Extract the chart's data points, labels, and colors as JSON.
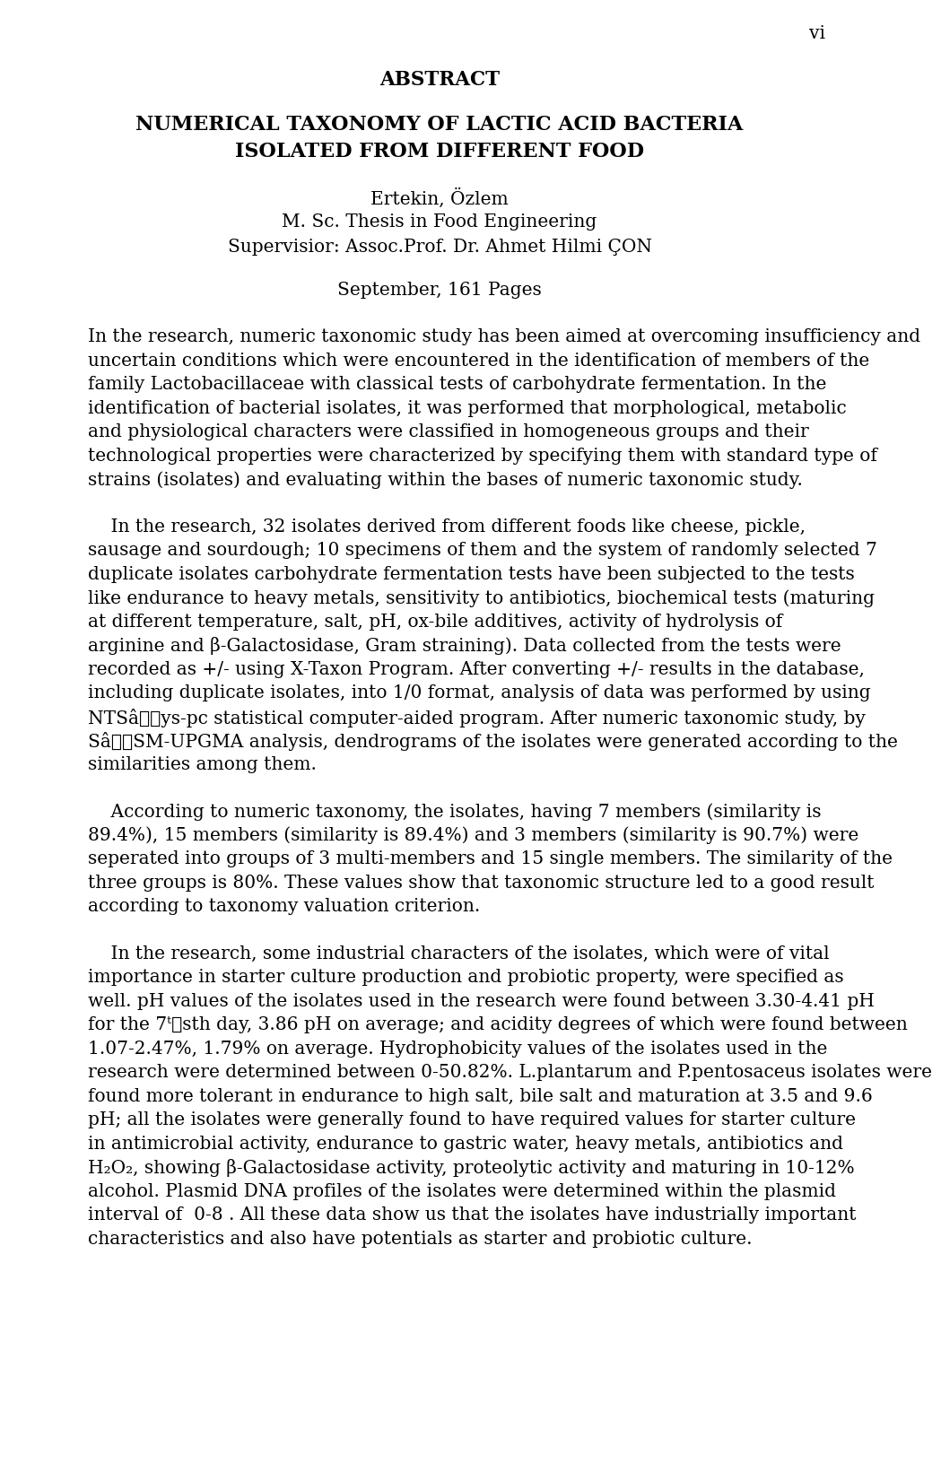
{
  "page_number": "vi",
  "title_abstract": "ABSTRACT",
  "title_main_line1": "NUMERICAL TAXONOMY OF LACTIC ACID BACTERIA",
  "title_main_line2": "ISOLATED FROM DIFFERENT FOOD",
  "author": "Ertekin, Özlem",
  "degree": "M. Sc. Thesis in Food Engineering",
  "supervisor": "Supervisior: Assoc.Prof. Dr. Ahmet Hilmi ÇON",
  "date_pages": "September, 161 Pages",
  "p1_before_italic": "In the research, numeric taxonomic study has been aimed at overcoming insufficiency and uncertain conditions which were encountered in the identification of members of the family ",
  "p1_italic": "Lactobacillaceae",
  "p1_after_italic": " with classical tests of carbohydrate fermentation. In the identification of bacterial isolates, it was performed that morphological, metabolic and physiological characters were classified in homogeneous groups and their technological properties were characterized by specifying them with standard type of strains (isolates) and evaluating within the bases of numeric taxonomic study.",
  "paragraph2_lines": [
    "    In the research, 32 isolates derived from different foods like cheese, pickle, sausage",
    "and sourdough; 10 specimens of them and the system of randomly selected 7 duplicate",
    "isolates carbohydrate fermentation tests have been subjected to the tests like endurance",
    "to heavy metals, sensitivity to antibiotics, biochemical tests (maturing at different",
    "temperature, salt, pH, ox-bile additives, activity of hydrolysis of arginine and β-",
    "Galactosidase, Gram straining). Data collected from the tests were recorded as +/-",
    "using X-Taxon Program. After converting +/- results in the database, including",
    "duplicate isolates, into 1/0 format, analysis of data was performed by using NTS",
    "statistical computer-aided program. After numeric taxonomic study, by S",
    "analysis, dendrograms of the isolates were generated according to the similarities",
    "among them."
  ],
  "paragraph3_lines": [
    "    According to numeric taxonomy, the isolates, having 7 members (similarity is",
    "89.4%), 15 members (similarity is 89.4%) and 3 members (similarity is 90.7%) were",
    "seperated into groups of 3 multi-members and 15 single members. The similarity of the",
    "three groups is 80%. These values show that taxonomic structure led to a good result",
    "according to taxonomy valuation criterion."
  ],
  "paragraph4_lines": [
    "    In the research, some industrial characters of the isolates, which were of vital",
    "importance in starter culture production and probiotic property, were specified as well.",
    "pH values of the isolates used in the research were found between 3.30-4.41 pH for the",
    "7th day, 3.86 pH on average; and acidity degrees of which were found between 1.07-",
    "2.47%, 1.79% on average. Hydrophobicity values of the isolates used in the research",
    "were determined between 0-50.82%. L.plantarum and P.pentosaceus isolates were",
    "found more tolerant in endurance to high salt, bile salt and maturation at 3.5 and 9.6",
    "pH; all the isolates were generally found to have required values for starter culture in",
    "antimicrobial activity, endurance to gastric water, heavy metals, antibiotics and H2O2,",
    "showing β-Galactosidase activity, proteolytic activity and maturing in 10-12% alcohol.",
    "Plasmid DNA profiles of the isolates were determined within the plasmid interval of  0-",
    "8 . All these data show us that the isolates have industrially important characteristics",
    "and also have potentials as starter and probiotic culture."
  ],
  "background_color": "#ffffff",
  "text_color": "#000000"
}
